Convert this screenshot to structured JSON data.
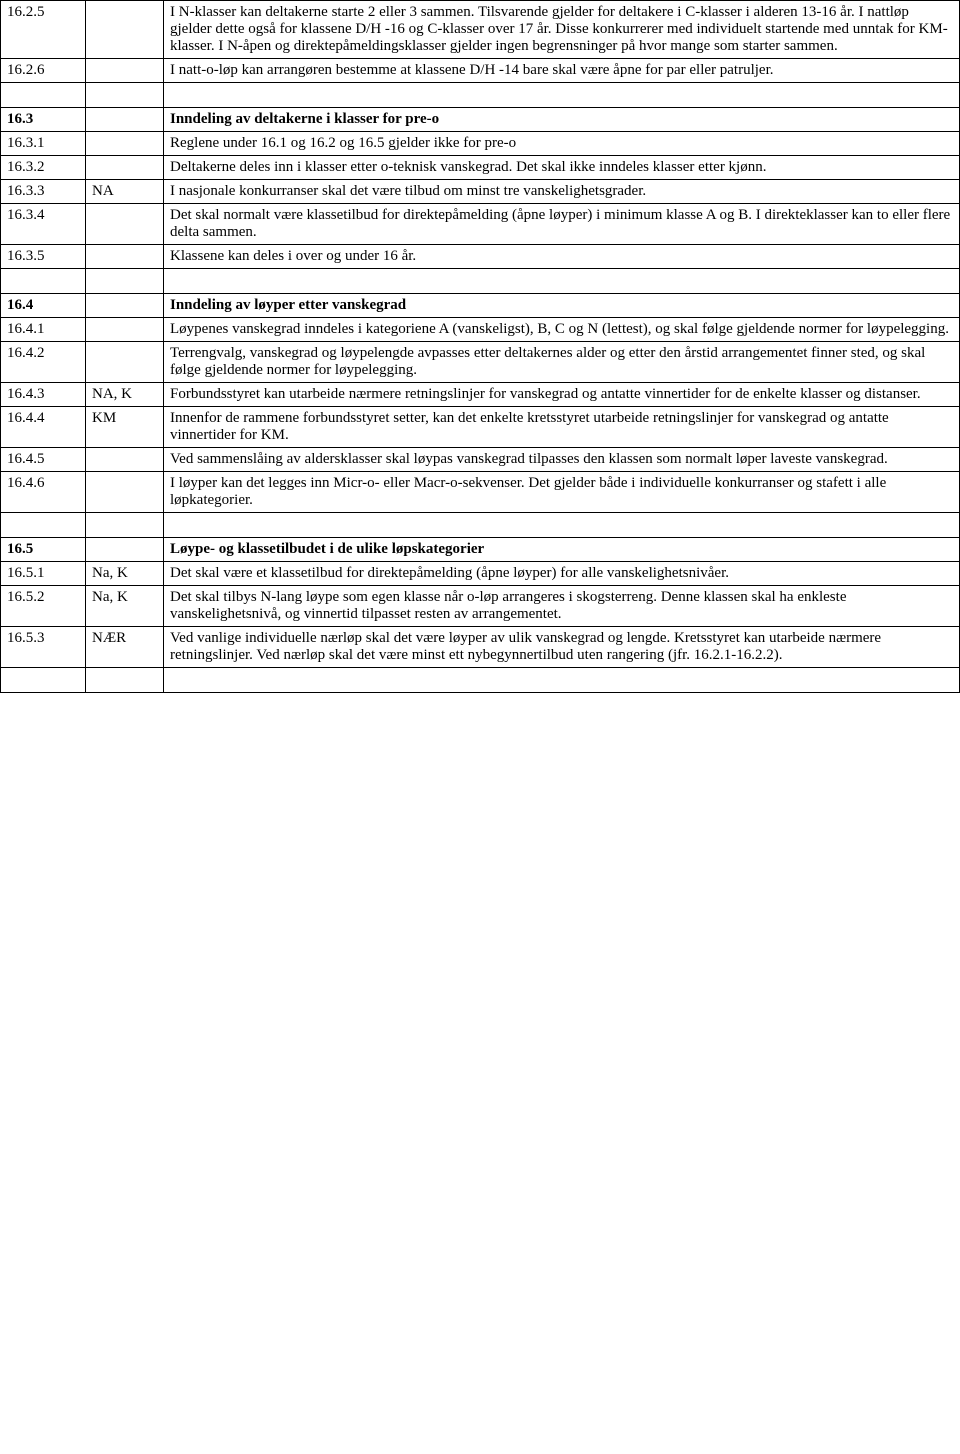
{
  "rows": [
    {
      "id": "16.2.5",
      "c2": "",
      "text": "I N-klasser kan deltakerne starte 2 eller 3 sammen. Tilsvarende gjelder for deltakere i C-klasser i alderen 13-16 år. I nattløp gjelder dette også for klassene D/H -16 og C-klasser over 17 år. Disse konkurrerer med individuelt startende med unntak for KM-klasser. I N-åpen og direktepåmeldingsklasser gjelder ingen begrensninger på hvor mange som starter sammen.",
      "bold": false,
      "justify": false
    },
    {
      "id": "16.2.6",
      "c2": "",
      "text": "I natt-o-løp kan arrangøren bestemme at klassene D/H -14 bare skal være åpne for par eller patruljer.",
      "bold": false,
      "justify": false
    },
    {
      "id": "",
      "c2": "",
      "text": "",
      "bold": false,
      "empty": true
    },
    {
      "id": "16.3",
      "c2": "",
      "text": "Inndeling av deltakerne i klasser for pre-o",
      "bold": true,
      "boldId": true,
      "justify": false
    },
    {
      "id": "16.3.1",
      "c2": "",
      "text": "Reglene under 16.1 og 16.2 og 16.5 gjelder ikke for pre-o",
      "bold": false,
      "justify": false
    },
    {
      "id": "16.3.2",
      "c2": "",
      "text": "Deltakerne deles inn i klasser etter o-teknisk vanskegrad. Det skal ikke inndeles klasser etter kjønn.",
      "bold": false,
      "justify": false
    },
    {
      "id": "16.3.3",
      "c2": "NA",
      "text": "I nasjonale konkurranser skal det være tilbud om minst tre vanskelighetsgrader.",
      "bold": false,
      "justify": false
    },
    {
      "id": "16.3.4",
      "c2": "",
      "text": "Det skal normalt være klassetilbud for direktepåmelding (åpne løyper) i minimum klasse A og B. I direkteklasser kan to eller flere delta sammen.",
      "bold": false,
      "justify": false
    },
    {
      "id": "16.3.5",
      "c2": "",
      "text": "Klassene kan deles i over og under 16 år.",
      "bold": false,
      "justify": false
    },
    {
      "id": "",
      "c2": "",
      "text": "",
      "bold": false,
      "empty": true
    },
    {
      "id": "16.4",
      "c2": "",
      "text": "Inndeling av løyper etter vanskegrad",
      "bold": true,
      "boldId": true,
      "justify": false
    },
    {
      "id": "16.4.1",
      "c2": "",
      "text": "Løypenes vanskegrad inndeles i kategoriene A (vanskeligst), B, C og N (lettest), og skal følge gjeldende normer for løypelegging.",
      "bold": false,
      "justify": false
    },
    {
      "id": "16.4.2",
      "c2": "",
      "text": "Terrengvalg, vanskegrad og løypelengde avpasses etter deltakernes alder og etter den årstid arrangementet finner sted, og skal følge gjeldende normer for løypelegging.",
      "bold": false,
      "justify": false
    },
    {
      "id": "16.4.3",
      "c2": "NA, K",
      "text": "Forbundsstyret kan utarbeide nærmere retningslinjer for vanskegrad og antatte vinnertider for de enkelte klasser og distanser.",
      "bold": false,
      "justify": true
    },
    {
      "id": "16.4.4",
      "c2": "KM",
      "text": "Innenfor de rammene forbundsstyret setter, kan det enkelte kretsstyret utarbeide retningslinjer for vanskegrad og antatte vinnertider for KM.",
      "bold": false,
      "justify": false
    },
    {
      "id": "16.4.5",
      "c2": "",
      "text": "Ved sammenslåing av aldersklasser skal løypas vanskegrad tilpasses den klassen som normalt løper laveste vanskegrad.",
      "bold": false,
      "justify": false
    },
    {
      "id": "16.4.6",
      "c2": "",
      "text": "I løyper kan det legges inn Micr-o- eller Macr-o-sekvenser.  Det gjelder både i individuelle konkurranser og stafett i alle løpkategorier.",
      "bold": false,
      "justify": false
    },
    {
      "id": "",
      "c2": "",
      "text": "",
      "bold": false,
      "empty": true
    },
    {
      "id": "16.5",
      "c2": "",
      "text": "Løype- og klassetilbudet i de ulike løpskategorier",
      "bold": true,
      "boldId": true,
      "justify": false
    },
    {
      "id": "16.5.1",
      "c2": "Na, K",
      "text": "Det skal være et klassetilbud for direktepåmelding (åpne løyper) for alle vanskelighetsnivåer.",
      "bold": false,
      "justify": false
    },
    {
      "id": "16.5.2",
      "c2": "Na, K",
      "text": "Det skal tilbys N-lang løype som egen klasse når o-løp arrangeres i skogsterreng. Denne klassen skal ha enkleste vanskelighetsnivå, og vinnertid tilpasset resten av arrangementet.",
      "bold": false,
      "justify": false
    },
    {
      "id": "16.5.3",
      "c2": "NÆR",
      "text": "Ved vanlige individuelle nærløp skal det være løyper av ulik vanskegrad og lengde. Kretsstyret kan utarbeide nærmere retningslinjer. Ved nærløp skal det være minst ett nybegynnertilbud uten rangering (jfr. 16.2.1-16.2.2).",
      "bold": false,
      "justify": false
    },
    {
      "id": "",
      "c2": "",
      "text": "",
      "bold": false,
      "empty": true
    }
  ]
}
